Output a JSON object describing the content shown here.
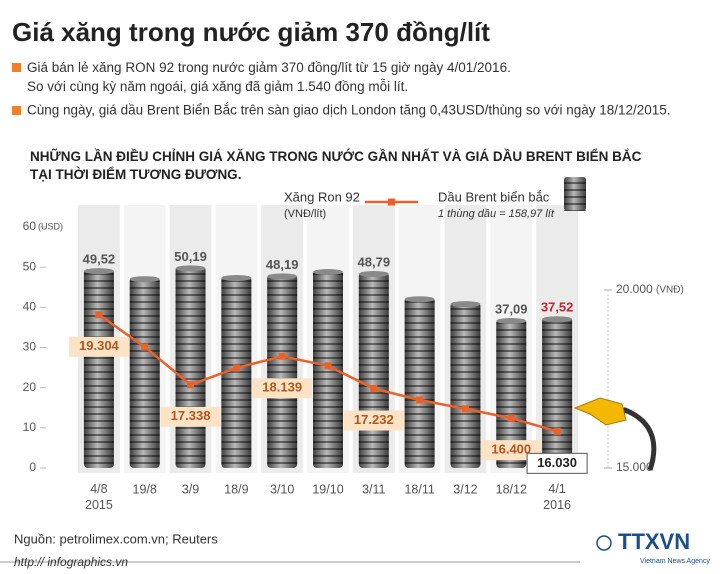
{
  "header": {
    "title": "Giá xăng trong nước giảm 370 đồng/lít",
    "bullets": [
      "Giá bán lẻ xăng RON 92 trong nước giảm 370 đồng/lít từ 15 giờ ngày 4/01/2016.\nSo với cùng kỳ năm ngoái, giá xăng đã giảm 1.540 đồng mỗi lít.",
      "Cùng ngày, giá dầu Brent Biển Bắc trên sàn giao dịch London tăng 0,43USD/thùng so với ngày 18/12/2015."
    ]
  },
  "chart_data": {
    "type": "combo",
    "title": "NHỮNG LẦN ĐIỀU CHỈNH GIÁ XĂNG TRONG NƯỚC GẦN NHẤT VÀ GIÁ DẦU BRENT BIỂN BẮC\nTẠI THỜI ĐIỂM TƯƠNG ĐƯƠNG.",
    "categories": [
      "4/8\n2015",
      "19/8",
      "3/9",
      "18/9",
      "3/10",
      "19/10",
      "3/11",
      "18/11",
      "3/12",
      "18/12",
      "4/1\n2016"
    ],
    "ylabel": "(USD)",
    "ylim": [
      0,
      60
    ],
    "yticks": [
      0,
      10,
      20,
      30,
      40,
      50,
      60
    ],
    "y2label": "(VNĐ)",
    "y2lim": [
      15000,
      20000
    ],
    "y2ticks": [
      {
        "value": 15000,
        "label": "15.000"
      },
      {
        "value": 20000,
        "label": "20.000"
      }
    ],
    "series": [
      {
        "name": "Dầu Brent biển bắc",
        "note": "1 thùng dầu = 158,97 lít",
        "type": "bar",
        "color": "#6e6e6e",
        "values": [
          49.52,
          47.5,
          50.19,
          47.8,
          48.19,
          49.3,
          48.79,
          42.5,
          41.3,
          37.09,
          37.52
        ],
        "value_labels": [
          "49,52",
          null,
          "50,19",
          null,
          "48,19",
          null,
          "48,79",
          null,
          null,
          "37,09",
          "37,52"
        ],
        "value_label_colors": [
          "#555555",
          null,
          "#555555",
          null,
          "#555555",
          null,
          "#555555",
          null,
          null,
          "#555555",
          "#c0272d"
        ]
      },
      {
        "name": "Xăng Ron 92",
        "unit": "(VNĐ/lít)",
        "type": "line",
        "axis": "y2",
        "color": "#e8622a",
        "values": [
          19304,
          18400,
          17338,
          17810,
          18139,
          17870,
          17232,
          16910,
          16660,
          16400,
          16030
        ],
        "value_labels": [
          "19.304",
          null,
          "17.338",
          null,
          "18.139",
          null,
          "17.232",
          null,
          null,
          "16.400",
          "16.030"
        ]
      }
    ]
  },
  "footer": {
    "source": "Nguồn: petrolimex.com.vn; Reuters",
    "url": "http:// infographics.vn",
    "logo": "TTXVN",
    "agency": "Vietnam News Agency"
  }
}
